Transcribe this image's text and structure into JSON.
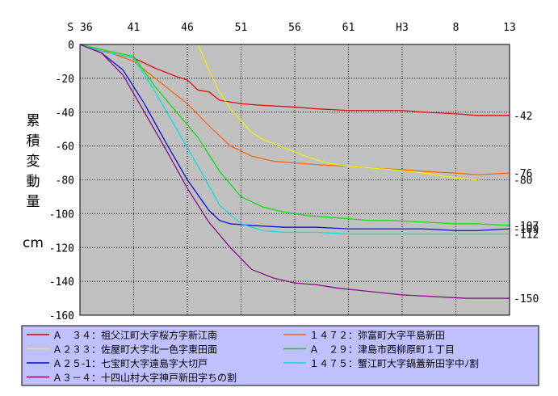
{
  "chart_data": {
    "type": "line",
    "ylabel": [
      "累",
      "積",
      "変",
      "動",
      "量"
    ],
    "yunit": "cm",
    "x_ticks": [
      "S 36",
      "41",
      "46",
      "51",
      "56",
      "61",
      "H3",
      "8",
      "13"
    ],
    "x_tick_years": [
      1961,
      1966,
      1971,
      1976,
      1981,
      1986,
      1991,
      1996,
      2001
    ],
    "xlim": [
      1961,
      2001
    ],
    "ylim": [
      -160,
      0
    ],
    "y_ticks": [
      0,
      -20,
      -40,
      -60,
      -80,
      -100,
      -120,
      -140,
      -160
    ],
    "grid": true,
    "plot_bg": "#c0c0c0",
    "legend_bg": "#c0c0ff",
    "series": [
      {
        "name": "Ａ　３４：祖父江町大字桜方字新江南",
        "color": "#e00000",
        "end_label": "-42",
        "x": [
          1961,
          1963,
          1966,
          1968,
          1970,
          1971,
          1972,
          1973,
          1974,
          1976,
          1978,
          1981,
          1983,
          1986,
          1988,
          1991,
          1993,
          1996,
          1998,
          2001
        ],
        "y": [
          0,
          -4,
          -8,
          -14,
          -19,
          -21,
          -27,
          -28,
          -33,
          -35,
          -36,
          -37,
          -38,
          -39,
          -39,
          -39,
          -40,
          -41,
          -42,
          -42
        ]
      },
      {
        "name": "１４７２：弥富町大字平島新田",
        "color": "#ff6000",
        "end_label": "-76",
        "x": [
          1961,
          1963,
          1966,
          1968,
          1971,
          1973,
          1975,
          1977,
          1979,
          1981,
          1983,
          1986,
          1988,
          1991,
          1993,
          1996,
          1998,
          2001
        ],
        "y": [
          0,
          -3,
          -10,
          -20,
          -35,
          -48,
          -60,
          -66,
          -69,
          -70,
          -71,
          -72,
          -73,
          -74,
          -75,
          -76,
          -77,
          -76
        ]
      },
      {
        "name": "Ａ２３３：佐屋町大字北一色字東田面",
        "color": "#f0f000",
        "end_label": "-80",
        "x": [
          1972,
          1973,
          1974,
          1975,
          1976,
          1977,
          1978,
          1980,
          1982,
          1984,
          1986,
          1988,
          1990,
          1993,
          1996,
          1998
        ],
        "y": [
          0,
          -15,
          -28,
          -38,
          -45,
          -52,
          -56,
          -61,
          -66,
          -70,
          -72,
          -73,
          -74,
          -76,
          -79,
          -80
        ]
      },
      {
        "name": "Ａ　２９：津島市西柳原町１丁目",
        "color": "#00e000",
        "end_label": "-107",
        "x": [
          1961,
          1963,
          1966,
          1968,
          1970,
          1972,
          1974,
          1976,
          1978,
          1980,
          1982,
          1984,
          1986,
          1988,
          1990,
          1993,
          1996,
          1998,
          2001
        ],
        "y": [
          0,
          -3,
          -7,
          -25,
          -40,
          -55,
          -75,
          -90,
          -96,
          -99,
          -101,
          -102,
          -103,
          -104,
          -104,
          -105,
          -106,
          -106,
          -107
        ]
      },
      {
        "name": "Ａ２５-1：七宝町大字遠島字大切戸",
        "color": "#0000e0",
        "end_label": "-109",
        "x": [
          1961,
          1963,
          1965,
          1967,
          1969,
          1971,
          1973,
          1974,
          1975,
          1977,
          1980,
          1983,
          1986,
          1990,
          1993,
          1996,
          1998,
          2001
        ],
        "y": [
          0,
          -5,
          -15,
          -35,
          -58,
          -80,
          -98,
          -104,
          -106,
          -107,
          -108,
          -108,
          -109,
          -109,
          -109,
          -110,
          -110,
          -109
        ]
      },
      {
        "name": "１４７５：蟹江町大字鍋蓋新田字中ﾉ割",
        "color": "#00e0e0",
        "end_label": "-112",
        "x": [
          1961,
          1963,
          1966,
          1968,
          1970,
          1972,
          1974,
          1976,
          1978,
          1980,
          1983,
          1986,
          1990,
          1993,
          1996,
          1998,
          2001
        ],
        "y": [
          0,
          -4,
          -8,
          -28,
          -50,
          -72,
          -95,
          -106,
          -110,
          -111,
          -111,
          -112,
          -112,
          -112,
          -112,
          -112,
          -112
        ]
      },
      {
        "name": "Ａ３－４：十四山村大字神戸新田字ちの割",
        "color": "#800080",
        "end_label": "-150",
        "x": [
          1961,
          1963,
          1965,
          1967,
          1969,
          1971,
          1973,
          1975,
          1977,
          1979,
          1981,
          1983,
          1985,
          1988,
          1991,
          1994,
          1997,
          2001
        ],
        "y": [
          0,
          -5,
          -18,
          -40,
          -62,
          -85,
          -105,
          -120,
          -133,
          -138,
          -141,
          -142,
          -144,
          -146,
          -148,
          -149,
          -150,
          -150
        ]
      }
    ]
  }
}
